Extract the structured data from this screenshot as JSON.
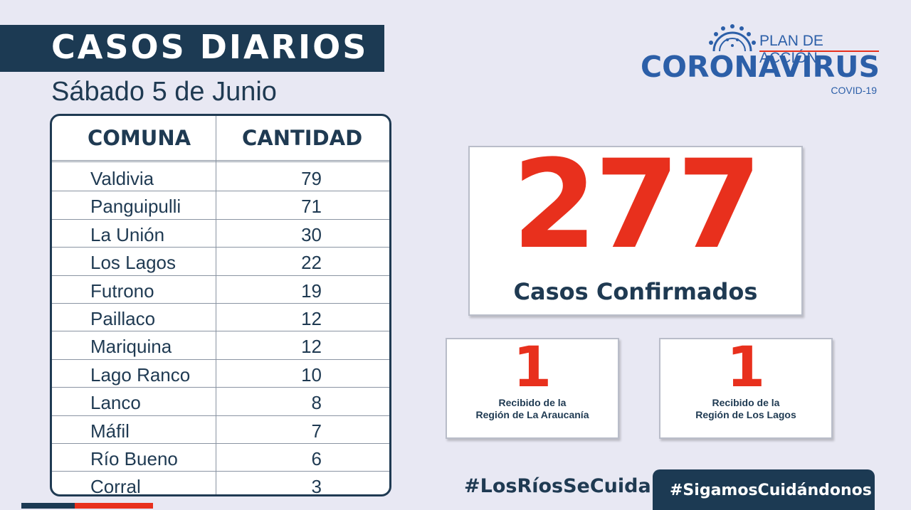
{
  "header": {
    "title": "CASOS DIARIOS",
    "subtitle": "Sábado 5 de Junio"
  },
  "table": {
    "columns": [
      "COMUNA",
      "CANTIDAD"
    ],
    "rows": [
      {
        "comuna": "Valdivia",
        "cantidad": "79"
      },
      {
        "comuna": "Panguipulli",
        "cantidad": "71"
      },
      {
        "comuna": "La Unión",
        "cantidad": "30"
      },
      {
        "comuna": "Los Lagos",
        "cantidad": "22"
      },
      {
        "comuna": "Futrono",
        "cantidad": "19"
      },
      {
        "comuna": "Paillaco",
        "cantidad": "12"
      },
      {
        "comuna": "Mariquina",
        "cantidad": "12"
      },
      {
        "comuna": "Lago Ranco",
        "cantidad": "10"
      },
      {
        "comuna": "Lanco",
        "cantidad": "8"
      },
      {
        "comuna": "Máfil",
        "cantidad": "7"
      },
      {
        "comuna": "Río Bueno",
        "cantidad": "6"
      },
      {
        "comuna": "Corral",
        "cantidad": "3"
      }
    ]
  },
  "logo": {
    "plan": "PLAN DE ACCIÓN",
    "name": "CORONAVIRUS",
    "sub": "COVID-19",
    "icon": "virus-icon"
  },
  "summary": {
    "total": "277",
    "total_label": "Casos Confirmados",
    "received": [
      {
        "count": "1",
        "line1": "Recibido de la",
        "line2": "Región de La Araucanía"
      },
      {
        "count": "1",
        "line1": "Recibido  de la",
        "line2": "Región de Los Lagos"
      }
    ]
  },
  "footer": {
    "hashtag_left": "#LosRíosSeCuida",
    "hashtag_right": "#SigamosCuidándonos"
  },
  "colors": {
    "navy": "#1c3a53",
    "red": "#e8301d",
    "blue": "#2c5fa8",
    "background": "#e8e8f3"
  }
}
